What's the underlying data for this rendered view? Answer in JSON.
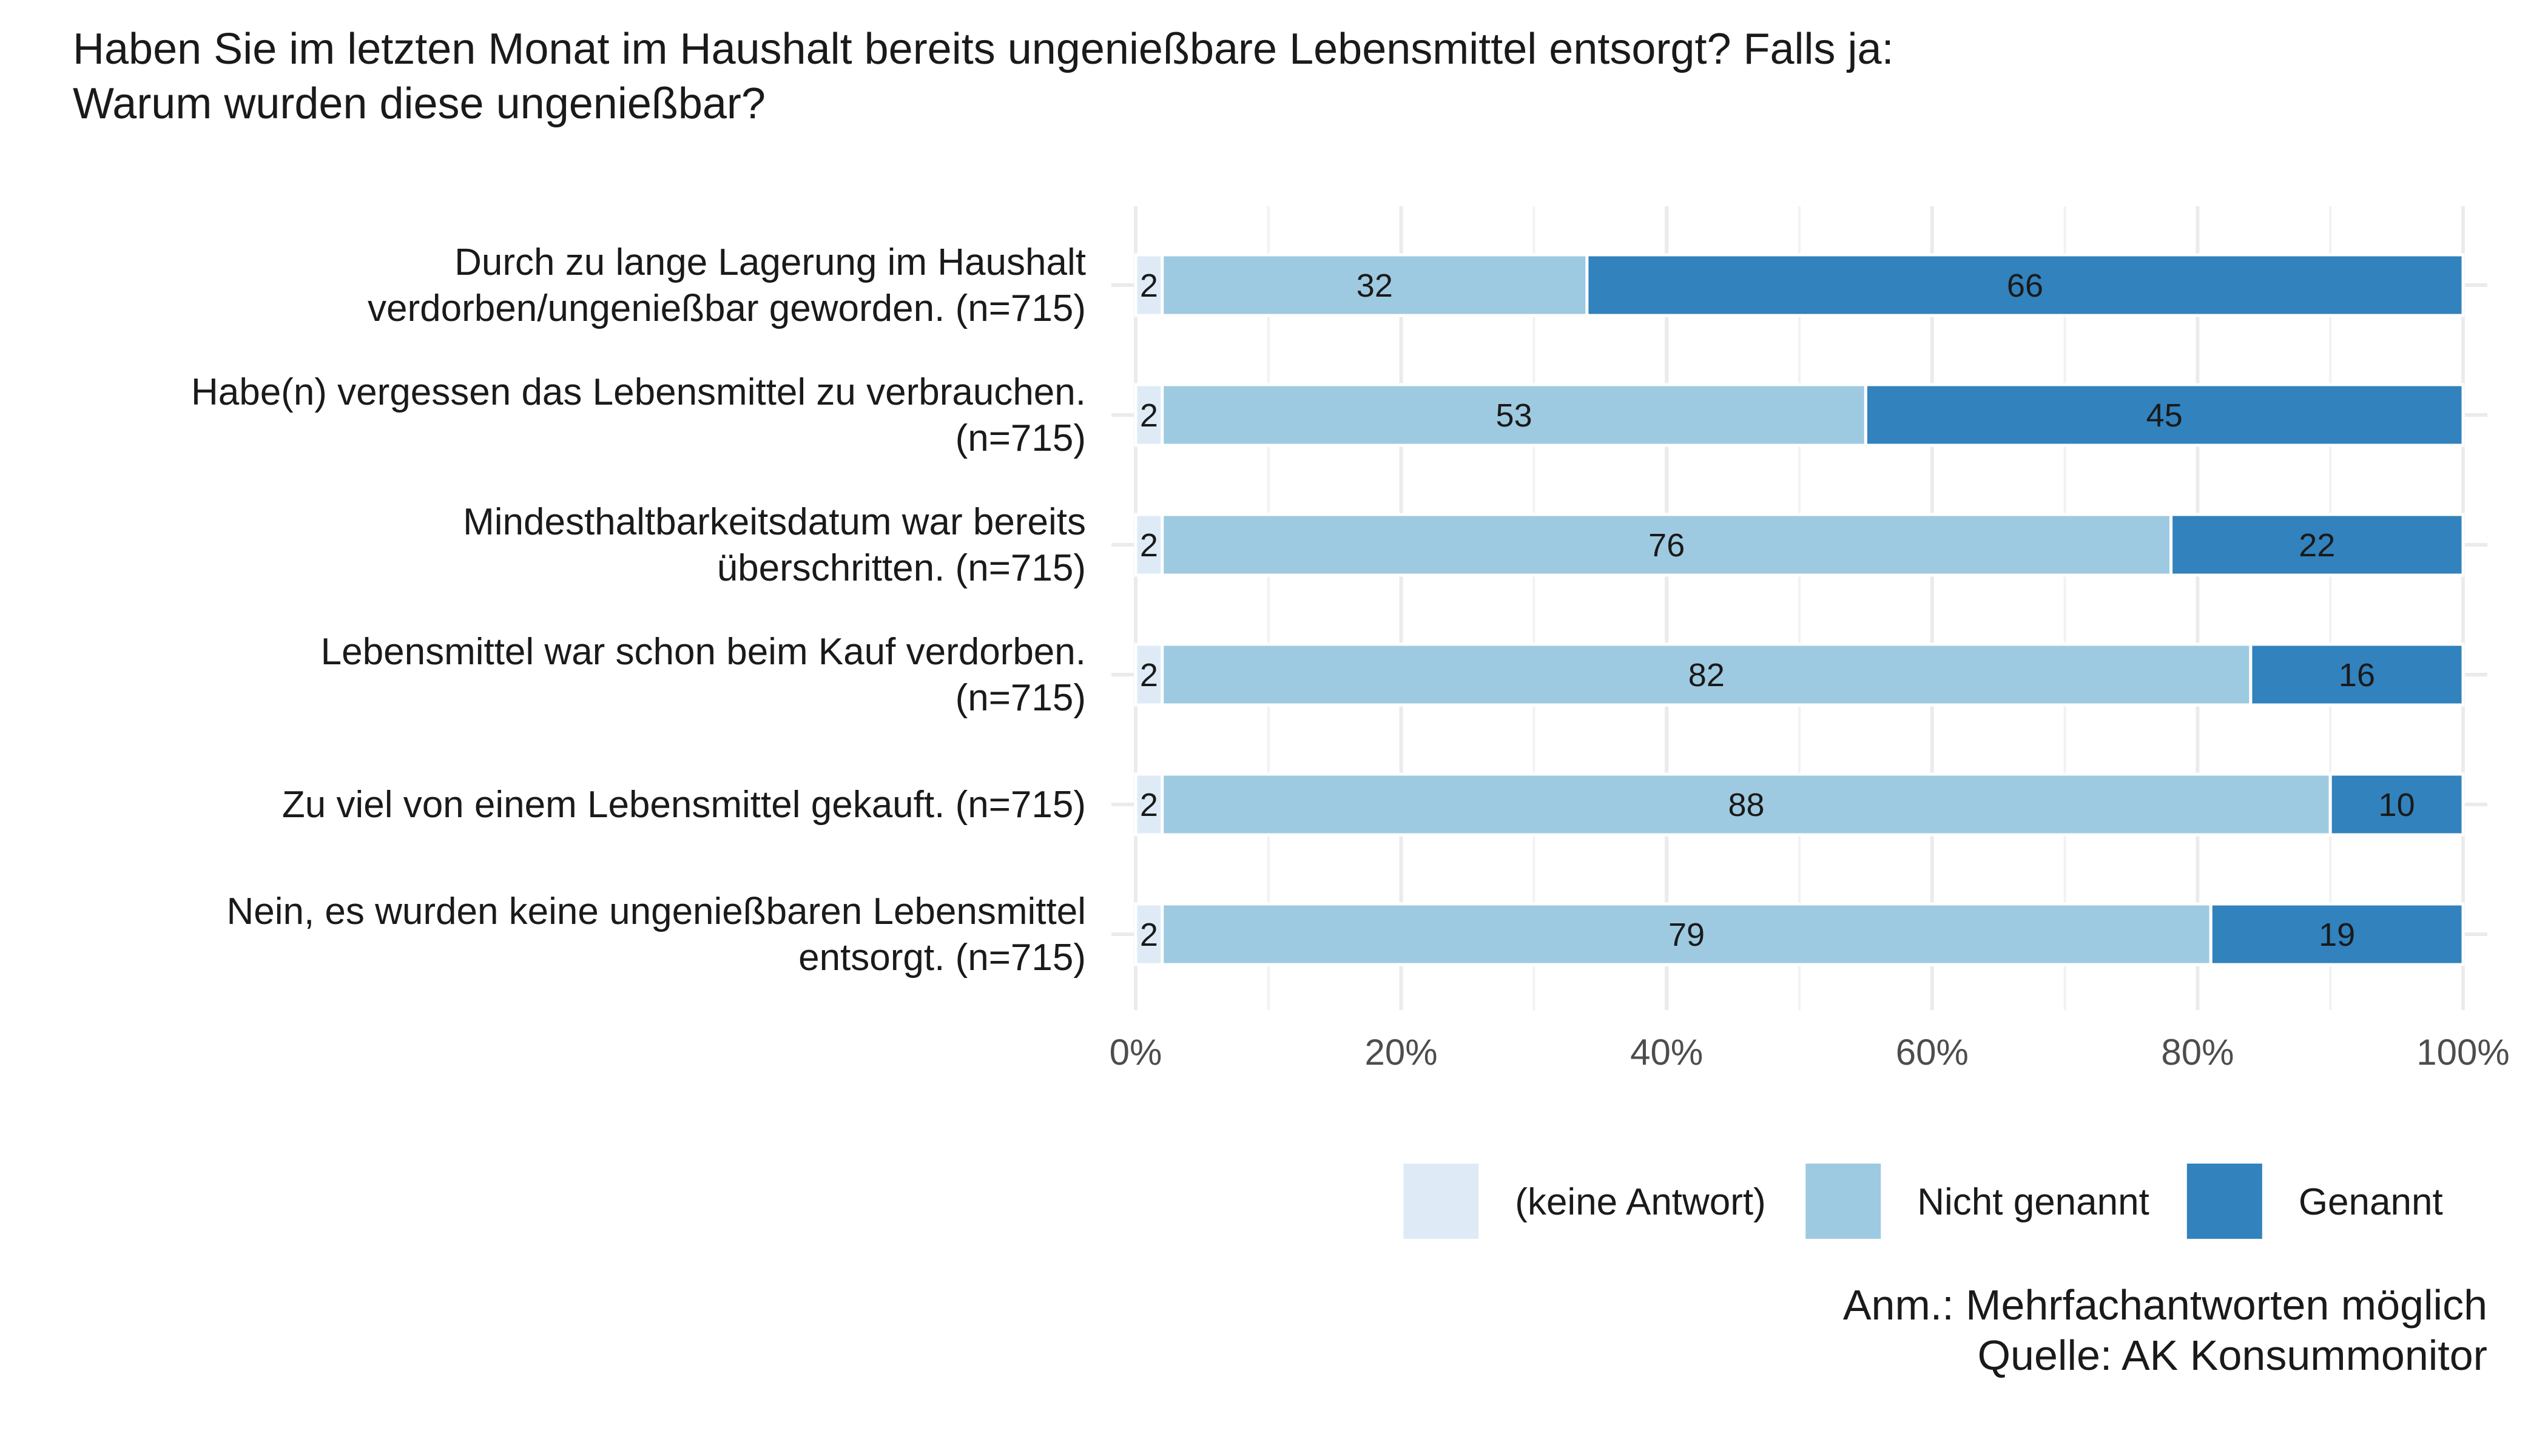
{
  "chart_data": {
    "type": "bar",
    "orientation": "horizontal",
    "stacked": true,
    "title": "Haben Sie im letzten Monat im Haushalt bereits ungenießbare Lebensmittel entsorgt? Falls ja: Warum wurden diese ungenießbar?",
    "title_lines": [
      "Haben Sie im letzten Monat im Haushalt bereits ungenießbare Lebensmittel entsorgt? Falls ja:",
      "Warum wurden diese ungenießbar?"
    ],
    "categories": [
      [
        "Durch zu lange Lagerung  im Haushalt",
        "verdorben/ungenießbar geworden. (n=715)"
      ],
      [
        "Habe(n) vergessen das Lebensmittel zu verbrauchen.",
        "(n=715)"
      ],
      [
        "Mindesthaltbarkeitsdatum war bereits",
        "überschritten. (n=715)"
      ],
      [
        "Lebensmittel war schon beim Kauf verdorben.",
        "(n=715)"
      ],
      [
        "Zu viel von einem Lebensmittel gekauft. (n=715)"
      ],
      [
        "Nein, es wurden keine ungenießbaren Lebensmittel",
        "entsorgt. (n=715)"
      ]
    ],
    "series": [
      {
        "name": "(keine Antwort)",
        "color": "#deebf7",
        "values": [
          2,
          2,
          2,
          2,
          2,
          2
        ]
      },
      {
        "name": "Nicht genannt",
        "color": "#9ecae1",
        "values": [
          32,
          53,
          76,
          82,
          88,
          79
        ]
      },
      {
        "name": "Genannt",
        "color": "#3182bd",
        "values": [
          66,
          45,
          22,
          16,
          10,
          19
        ]
      }
    ],
    "xlim": [
      0,
      100
    ],
    "xticks": [
      0,
      20,
      40,
      60,
      80,
      100
    ],
    "xtick_labels": [
      "0%",
      "20%",
      "40%",
      "60%",
      "80%",
      "100%"
    ],
    "legend_position": "bottom",
    "grid": true,
    "notes": [
      "Anm.: Mehrfachantworten möglich",
      "Quelle: AK Konsummonitor"
    ]
  }
}
